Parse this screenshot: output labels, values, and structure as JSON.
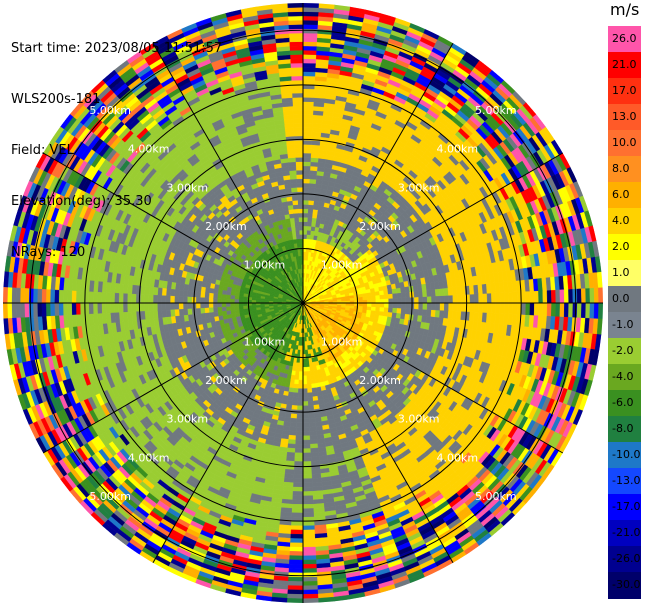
{
  "info": {
    "start_time": "Start time: 2023/08/05 11:51:57",
    "instrument": "WLS200s-181",
    "field": "Field: VEL",
    "elevation": "Elevation(deg): 35.30",
    "nrays": "NRays: 120"
  },
  "colorbar": {
    "unit": "m/s",
    "ticks": [
      "26.0",
      "21.0",
      "17.0",
      "13.0",
      "10.0",
      "8.0",
      "6.0",
      "4.0",
      "2.0",
      "1.0",
      "0.0",
      "-1.0",
      "-2.0",
      "-4.0",
      "-6.0",
      "-8.0",
      "-10.0",
      "-13.0",
      "-17.0",
      "-21.0",
      "-26.0",
      "-30.0"
    ],
    "colors": [
      "#ff55aa",
      "#ff0000",
      "#ff3010",
      "#ff5a28",
      "#ff7030",
      "#ff9020",
      "#ffb000",
      "#ffd200",
      "#ffff00",
      "#ffff66",
      "#707880",
      "#7a8490",
      "#9acd32",
      "#6aa820",
      "#3a9020",
      "#208040",
      "#1e78c8",
      "#1448ff",
      "#0000ff",
      "#0000c0",
      "#000090",
      "#00006a"
    ]
  },
  "chart_data": {
    "type": "heatmap",
    "projection": "PPI (plan position indicator)",
    "field": "VEL",
    "unit": "m/s",
    "range_rings": [
      "1.00km",
      "2.00km",
      "3.00km",
      "4.00km",
      "5.00km"
    ],
    "range_ring_km": [
      1,
      2,
      3,
      4,
      5
    ],
    "max_range_km": 5.5,
    "nrays": 120,
    "color_scale": [
      -30,
      26
    ]
  }
}
